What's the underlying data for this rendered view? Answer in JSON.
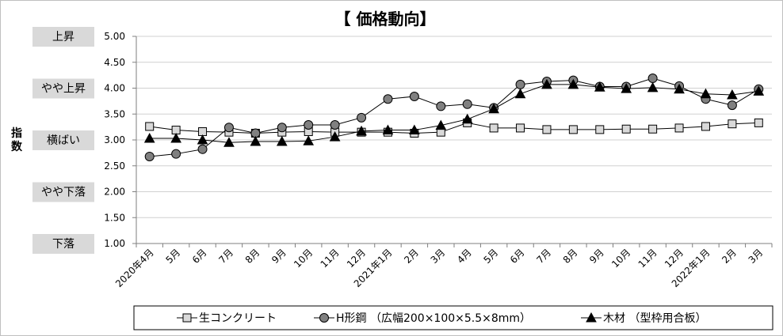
{
  "chart_data": {
    "type": "line",
    "title": "【 価格動向】",
    "ylabel": "指数",
    "ylim": [
      1.0,
      5.0
    ],
    "yticks": [
      "1.00",
      "1.50",
      "2.00",
      "2.50",
      "3.00",
      "3.50",
      "4.00",
      "4.50",
      "5.00"
    ],
    "categories": [
      "2020年4月",
      "5月",
      "6月",
      "7月",
      "8月",
      "9月",
      "10月",
      "11月",
      "12月",
      "2021年1月",
      "2月",
      "3月",
      "4月",
      "5月",
      "6月",
      "7月",
      "8月",
      "9月",
      "10月",
      "11月",
      "12月",
      "2022年1月",
      "2月",
      "3月"
    ],
    "level_labels": [
      {
        "text": "上昇",
        "value": 5.0
      },
      {
        "text": "やや上昇",
        "value": 4.0
      },
      {
        "text": "横ばい",
        "value": 3.0
      },
      {
        "text": "やや下落",
        "value": 2.0
      },
      {
        "text": "下落",
        "value": 1.0
      }
    ],
    "grid": true,
    "legend_position": "bottom",
    "series": [
      {
        "name": "生コンクリート",
        "marker": "square",
        "color": "#000000",
        "marker_fill": "#d9d9d9",
        "values": [
          3.26,
          3.19,
          3.16,
          3.15,
          3.13,
          3.15,
          3.16,
          3.15,
          3.15,
          3.15,
          3.13,
          3.15,
          3.33,
          3.23,
          3.23,
          3.2,
          3.2,
          3.2,
          3.21,
          3.21,
          3.23,
          3.26,
          3.31,
          3.33
        ]
      },
      {
        "name": "H形鋼 （広幅200×100×5.5×8mm）",
        "marker": "circle",
        "color": "#000000",
        "marker_fill": "#808080",
        "values": [
          2.68,
          2.73,
          2.82,
          3.24,
          3.13,
          3.24,
          3.29,
          3.29,
          3.43,
          3.79,
          3.84,
          3.65,
          3.69,
          3.62,
          4.07,
          4.13,
          4.15,
          4.03,
          4.03,
          4.19,
          4.04,
          3.79,
          3.67,
          3.98
        ]
      },
      {
        "name": "木材 （型枠用合板）",
        "marker": "triangle",
        "color": "#000000",
        "marker_fill": "#000000",
        "values": [
          3.03,
          3.03,
          3.0,
          2.95,
          2.97,
          2.97,
          2.98,
          3.06,
          3.17,
          3.19,
          3.19,
          3.28,
          3.4,
          3.6,
          3.89,
          4.07,
          4.07,
          4.02,
          3.99,
          4.01,
          3.98,
          3.89,
          3.87,
          3.94
        ]
      }
    ]
  }
}
